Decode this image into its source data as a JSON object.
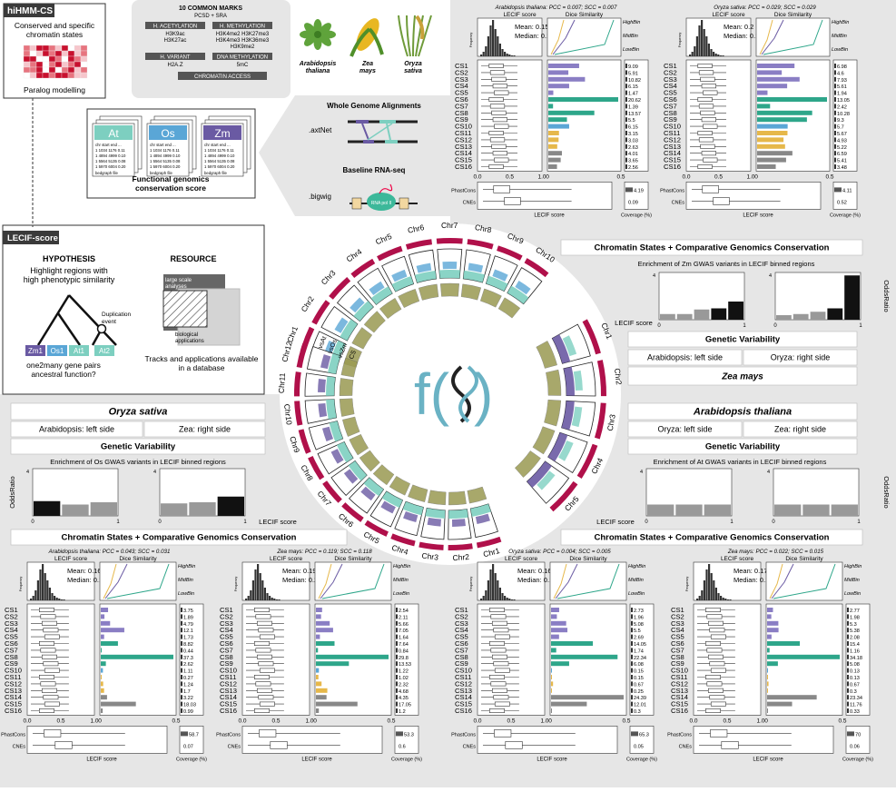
{
  "title_panel": {
    "badge": "hiHMM-CS",
    "subtitle": "Conserved and specific chromatin states",
    "footer": "Paralog modelling"
  },
  "marks": {
    "title": "10 COMMON MARKS",
    "subtitle": "PCSD + SRA",
    "groups": [
      {
        "header": "H. ACETYLATION",
        "items": "H3K9ac\nH3K27ac"
      },
      {
        "header": "H. METHYLATION",
        "items": "H3K4me2  H3K27me3\nH3K4me3  H3K36me3\nH3K9me2"
      },
      {
        "header": "H. VARIANT",
        "items": "H2A.Z"
      },
      {
        "header": "DNA METHYLATION",
        "items": "5mC"
      }
    ],
    "access": "CHROMATIN ACCESS"
  },
  "species": [
    {
      "name": "Arabidopsis thaliana",
      "icon": "arabidopsis-icon"
    },
    {
      "name": "Zea mays",
      "icon": "corn-icon"
    },
    {
      "name": "Oryza sativa",
      "icon": "rice-icon"
    }
  ],
  "pipeline": {
    "wga_title": "Whole Genome Alignments",
    "wga_file": ".axtNet",
    "rna_title": "Baseline RNA-seq",
    "rna_file": ".bigwig",
    "polii": "RNA pol II",
    "fg_title": "Functional genomics conservation score",
    "cards": [
      {
        "code": "At",
        "color": "#7dcfc0"
      },
      {
        "code": "Os",
        "color": "#5aa6d6"
      },
      {
        "code": "Zm",
        "color": "#6a5aa3"
      }
    ],
    "card_rows": [
      "chr start end ...",
      "1 1034 1176 0.11",
      "1 4894 4999 0.10",
      "1 5564 5135 0.08",
      "1 5970 6004 0.20"
    ],
    "card_footer": "bedgraph file"
  },
  "lecif": {
    "badge": "LECIF-score",
    "hypothesis_title": "HYPOTHESIS",
    "hypothesis_text": "Highlight regions with high phenotypic similarity",
    "duplication": "Duplication event",
    "leaves": [
      "Zm1",
      "Os1",
      "At1",
      "At2"
    ],
    "leaf_colors": [
      "#6a5aa3",
      "#5aa6d6",
      "#7dcfc0",
      "#7dcfc0"
    ],
    "question": "one2many gene pairs ancestral function?",
    "resource_title": "RESOURCE",
    "large_scale": "large scale analyses",
    "bio_apps": "biological applications",
    "tracks": "Tracks and applications available in a database"
  },
  "circos": {
    "top_chrs": [
      "Chr1",
      "Chr2",
      "Chr3",
      "Chr4",
      "Chr5",
      "Chr6",
      "Chr7",
      "Chr8",
      "Chr9",
      "Chr10"
    ],
    "left_chrs": [
      "Chr12",
      "Chr11",
      "Chr10",
      "Chr9",
      "Chr8",
      "Chr7",
      "Chr6",
      "Chr5",
      "Chr4",
      "Chr3",
      "Chr2",
      "Chr1"
    ],
    "right_chrs": [
      "Chr1",
      "Chr2",
      "Chr3",
      "Chr4",
      "Chr5"
    ],
    "track_labels": [
      "vsAt",
      "vsOs",
      "vsZm",
      "CS"
    ],
    "logo": "f(x)"
  },
  "common": {
    "cs_states": [
      "CS1",
      "CS2",
      "CS3",
      "CS4",
      "CS5",
      "CS6",
      "CS7",
      "CS8",
      "CS9",
      "CS10",
      "CS11",
      "CS12",
      "CS13",
      "CS14",
      "CS15",
      "CS16"
    ],
    "lecif_score": "LECIF score",
    "dice": "Dice Similarity",
    "bins": [
      "HighBin",
      "MidBin",
      "LowBin"
    ],
    "phastcons": "PhastCons",
    "cnes": "CNEs",
    "coverage": "Coverage (%)",
    "odds_ratio": "OddsRatio",
    "frequency": "Frequency"
  },
  "panels": {
    "zm_at": {
      "title": "Arabidopsis thaliana: PCC = 0.007; SCC = 0.007",
      "mean": "Mean: 0.15",
      "median": "Median: 0.14",
      "values": [
        "9.09",
        "5.91",
        "10.82",
        "6.15",
        "1.47",
        "20.62",
        "1.39",
        "13.57",
        "5.5",
        "6.15",
        "3.15",
        "3.03",
        "2.63",
        "4.01",
        "3.65",
        "2.56"
      ],
      "phastcons_cov": "4.19",
      "cnes_cov": "0.09"
    },
    "zm_os": {
      "title": "Oryza sativa: PCC = 0.029; SCC = 0.029",
      "mean": "Mean: 0.2",
      "median": "Median: 0.14",
      "values": [
        "6.98",
        "4.6",
        "7.93",
        "5.61",
        "1.94",
        "13.05",
        "2.42",
        "10.28",
        "9.3",
        "5.7",
        "5.67",
        "4.93",
        "5.22",
        "6.59",
        "5.41",
        "3.48"
      ],
      "phastcons_cov": "4.11",
      "cnes_cov": "0.52"
    },
    "os_at": {
      "title": "Arabidopsis thaliana: PCC = 0.043; SCC = 0.031",
      "mean": "Mean: 0.16",
      "median": "Median: 0.16",
      "values": [
        "3.75",
        "1.89",
        "4.79",
        "12.1",
        "1.73",
        "8.82",
        "0.44",
        "37.3",
        "2.62",
        "1.11",
        "0.27",
        "1.24",
        "1.7",
        "3.22",
        "18.03",
        "0.99"
      ],
      "phastcons_cov": "58.7",
      "cnes_cov": "0.07"
    },
    "os_zm": {
      "title": "Zea mays: PCC = 0.119; SCC = 0.118",
      "mean": "Mean: 0.19",
      "median": "Median: 0.2",
      "values": [
        "2.54",
        "2.11",
        "5.66",
        "7.05",
        "1.64",
        "7.64",
        "0.84",
        "29.8",
        "13.53",
        "1.22",
        "1.02",
        "2.32",
        "4.68",
        "4.35",
        "17.05",
        "1.2"
      ],
      "phastcons_cov": "53.3",
      "cnes_cov": "0.6"
    },
    "at_os": {
      "title": "Oryza sativa: PCC = 0.004; SCC = 0.005",
      "mean": "Mean: 0.16",
      "median": "Median: 0.16",
      "values": [
        "2.73",
        "1.96",
        "5.08",
        "5.5",
        "2.69",
        "14.05",
        "1.74",
        "22.34",
        "6.08",
        "0.15",
        "0.15",
        "0.67",
        "0.25",
        "24.39",
        "12.01",
        "0.3"
      ],
      "phastcons_cov": "65.3",
      "cnes_cov": "0.05"
    },
    "at_zm": {
      "title": "Zea mays: PCC = 0.022; SCC = 0.015",
      "mean": "Mean: 0.17",
      "median": "Median: 0.15",
      "values": [
        "2.77",
        "1.98",
        "5.3",
        "5.38",
        "2.08",
        "15.4",
        "1.16",
        "34.18",
        "5.08",
        "0.13",
        "0.13",
        "0.67",
        "0.3",
        "23.34",
        "11.76",
        "0.33"
      ],
      "phastcons_cov": "70",
      "cnes_cov": "0.06"
    }
  },
  "sections": {
    "zea": {
      "cs_title": "Chromatin States + Comparative Genomics Conservation",
      "enrich": "Enrichment of Zm GWAS variants in LECIF binned regions",
      "gv": "Genetic Variability",
      "left": "Arabidopsis: left side",
      "right": "Oryza: right side",
      "species": "Zea mays"
    },
    "oryza": {
      "species": "Oryza sativa",
      "left": "Arabidopsis: left side",
      "right": "Zea: right side",
      "gv": "Genetic Variability",
      "enrich": "Enrichment of Os GWAS variants in LECIF binned regions",
      "cs_title": "Chromatin States + Comparative Genomics Conservation"
    },
    "arab": {
      "species": "Arabidopsis thaliana",
      "left": "Oryza: left side",
      "right": "Zea: right side",
      "gv": "Genetic Variability",
      "enrich": "Enrichment of At GWAS variants in LECIF binned regions",
      "cs_title": "Chromatin States + Comparative Genomics Conservation"
    }
  },
  "enrich_values": {
    "zea_left": [
      0.5,
      0.5,
      0.9,
      1.0,
      1.6
    ],
    "zea_right": [
      0.4,
      0.5,
      0.7,
      1.0,
      3.9
    ],
    "oryza_left": [
      1.3,
      1.0,
      1.2
    ],
    "oryza_right": [
      1.1,
      1.2,
      1.7
    ],
    "arab_left": [
      1.0,
      1.0,
      1.0
    ],
    "arab_right": [
      1.0,
      1.0,
      1.0
    ]
  }
}
